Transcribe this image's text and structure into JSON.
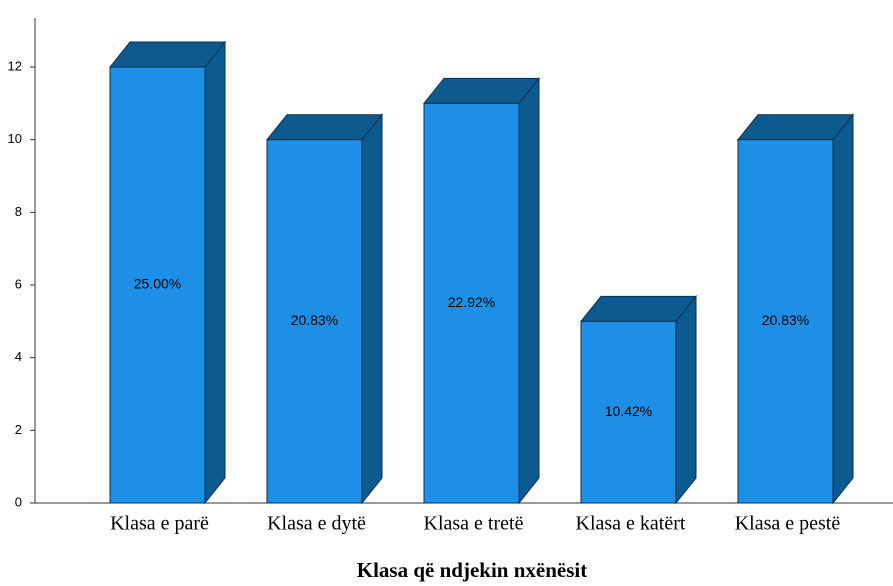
{
  "chart_data": {
    "type": "bar3d",
    "x_label": "Klasa që ndjekin nxënësit",
    "categories": [
      "Klasa e parë",
      "Klasa e dytë",
      "Klasa e tretë",
      "Klasa e katërt",
      "Klasa e pestë"
    ],
    "values": [
      12,
      10,
      11,
      5,
      10
    ],
    "data_labels": [
      "25.00%",
      "20.83%",
      "22.92%",
      "10.42%",
      "20.83%"
    ],
    "color": "#1e8fe6",
    "side_color": "#0d5a90",
    "ylim": [
      0,
      13.35
    ],
    "yticks": [
      0,
      2,
      4,
      6,
      8,
      10,
      12
    ],
    "grid": false
  }
}
